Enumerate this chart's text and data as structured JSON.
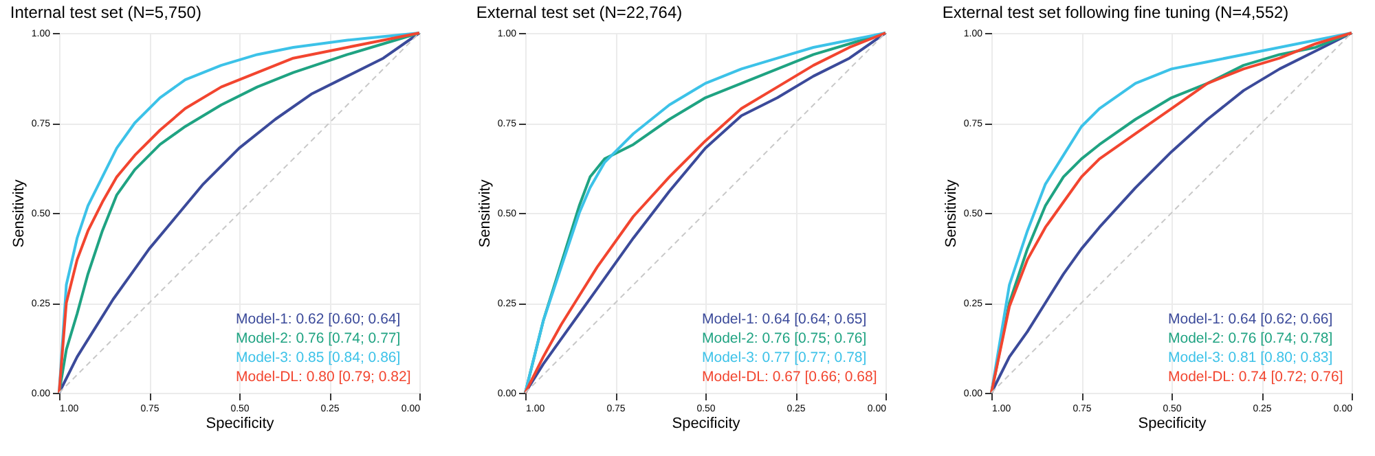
{
  "chart_data": [
    {
      "type": "line",
      "title": "Internal test set (N=5,750)",
      "xlabel": "Specificity",
      "ylabel": "Sensitivity",
      "xlim": [
        1,
        0
      ],
      "ylim": [
        0,
        1
      ],
      "xticks": [
        {
          "value": 1,
          "label": "1.00"
        },
        {
          "value": 0.75,
          "label": "0.75"
        },
        {
          "value": 0.5,
          "label": "0.50"
        },
        {
          "value": 0.25,
          "label": "0.25"
        },
        {
          "value": 0,
          "label": "0.00"
        }
      ],
      "yticks": [
        {
          "value": 0,
          "label": "0.00"
        },
        {
          "value": 0.25,
          "label": "0.25"
        },
        {
          "value": 0.5,
          "label": "0.50"
        },
        {
          "value": 0.75,
          "label": "0.75"
        },
        {
          "value": 1,
          "label": "1.00"
        }
      ],
      "grid": true,
      "legend": "bottom right",
      "series": [
        {
          "name": "Model-1: 0.62 [0.60; 0.64]",
          "color": "#3b4a9a",
          "x": [
            1,
            0.95,
            0.9,
            0.85,
            0.8,
            0.75,
            0.7,
            0.65,
            0.6,
            0.5,
            0.4,
            0.3,
            0.2,
            0.1,
            0
          ],
          "values": [
            0,
            0.1,
            0.18,
            0.26,
            0.33,
            0.4,
            0.46,
            0.52,
            0.58,
            0.68,
            0.76,
            0.83,
            0.88,
            0.93,
            1
          ]
        },
        {
          "name": "Model-2: 0.76 [0.74; 0.77]",
          "color": "#1fa382",
          "x": [
            1,
            0.98,
            0.95,
            0.92,
            0.88,
            0.84,
            0.79,
            0.72,
            0.65,
            0.55,
            0.45,
            0.35,
            0.2,
            0.1,
            0
          ],
          "values": [
            0,
            0.12,
            0.22,
            0.33,
            0.45,
            0.55,
            0.62,
            0.69,
            0.74,
            0.8,
            0.85,
            0.89,
            0.94,
            0.97,
            1
          ]
        },
        {
          "name": "Model-3: 0.85 [0.84; 0.86]",
          "color": "#3cc2e8",
          "x": [
            1,
            0.98,
            0.95,
            0.92,
            0.88,
            0.84,
            0.79,
            0.72,
            0.65,
            0.55,
            0.45,
            0.35,
            0.2,
            0.1,
            0
          ],
          "values": [
            0,
            0.3,
            0.43,
            0.52,
            0.6,
            0.68,
            0.75,
            0.82,
            0.87,
            0.91,
            0.94,
            0.96,
            0.98,
            0.99,
            1
          ]
        },
        {
          "name": "Model-DL: 0.80 [0.79; 0.82]",
          "color": "#f2452f",
          "x": [
            1,
            0.98,
            0.95,
            0.92,
            0.88,
            0.84,
            0.79,
            0.72,
            0.65,
            0.55,
            0.45,
            0.35,
            0.2,
            0.1,
            0
          ],
          "values": [
            0,
            0.25,
            0.37,
            0.45,
            0.53,
            0.6,
            0.66,
            0.73,
            0.79,
            0.85,
            0.89,
            0.93,
            0.96,
            0.98,
            1
          ]
        },
        {
          "color": "#c8c8c8",
          "line_style": "dashed",
          "x": [
            1,
            0
          ],
          "values": [
            0,
            1
          ]
        }
      ]
    },
    {
      "type": "line",
      "title": "External test set (N=22,764)",
      "xlabel": "Specificity",
      "ylabel": "Sensitivity",
      "xlim": [
        1,
        0
      ],
      "ylim": [
        0,
        1
      ],
      "xticks": [
        {
          "value": 1,
          "label": "1.00"
        },
        {
          "value": 0.75,
          "label": "0.75"
        },
        {
          "value": 0.5,
          "label": "0.50"
        },
        {
          "value": 0.25,
          "label": "0.25"
        },
        {
          "value": 0,
          "label": "0.00"
        }
      ],
      "yticks": [
        {
          "value": 0,
          "label": "0.00"
        },
        {
          "value": 0.25,
          "label": "0.25"
        },
        {
          "value": 0.5,
          "label": "0.50"
        },
        {
          "value": 0.75,
          "label": "0.75"
        },
        {
          "value": 1,
          "label": "1.00"
        }
      ],
      "grid": true,
      "legend": "bottom right",
      "series": [
        {
          "name": "Model-1: 0.64 [0.64; 0.65]",
          "color": "#3b4a9a",
          "x": [
            1,
            0.95,
            0.9,
            0.85,
            0.8,
            0.7,
            0.6,
            0.5,
            0.4,
            0.3,
            0.2,
            0.1,
            0
          ],
          "values": [
            0,
            0.08,
            0.15,
            0.22,
            0.29,
            0.43,
            0.56,
            0.68,
            0.77,
            0.82,
            0.88,
            0.93,
            1
          ]
        },
        {
          "name": "Model-2: 0.76 [0.75; 0.76]",
          "color": "#1fa382",
          "x": [
            1,
            0.95,
            0.9,
            0.85,
            0.82,
            0.78,
            0.7,
            0.6,
            0.5,
            0.4,
            0.3,
            0.2,
            0.1,
            0
          ],
          "values": [
            0,
            0.2,
            0.36,
            0.52,
            0.6,
            0.65,
            0.69,
            0.76,
            0.82,
            0.86,
            0.9,
            0.94,
            0.97,
            1
          ]
        },
        {
          "name": "Model-3: 0.77 [0.77; 0.78]",
          "color": "#3cc2e8",
          "x": [
            1,
            0.95,
            0.9,
            0.85,
            0.82,
            0.78,
            0.7,
            0.6,
            0.5,
            0.4,
            0.3,
            0.2,
            0.1,
            0
          ],
          "values": [
            0,
            0.2,
            0.35,
            0.5,
            0.57,
            0.64,
            0.72,
            0.8,
            0.86,
            0.9,
            0.93,
            0.96,
            0.98,
            1
          ]
        },
        {
          "name": "Model-DL: 0.67 [0.66; 0.68]",
          "color": "#f2452f",
          "x": [
            1,
            0.95,
            0.9,
            0.85,
            0.8,
            0.7,
            0.6,
            0.5,
            0.4,
            0.3,
            0.2,
            0.1,
            0
          ],
          "values": [
            0,
            0.1,
            0.19,
            0.27,
            0.35,
            0.49,
            0.6,
            0.7,
            0.79,
            0.85,
            0.91,
            0.96,
            1
          ]
        },
        {
          "color": "#c8c8c8",
          "line_style": "dashed",
          "x": [
            1,
            0
          ],
          "values": [
            0,
            1
          ]
        }
      ]
    },
    {
      "type": "line",
      "title": "External test set following fine tuning (N=4,552)",
      "xlabel": "Specificity",
      "ylabel": "Sensitivity",
      "xlim": [
        1,
        0
      ],
      "ylim": [
        0,
        1
      ],
      "xticks": [
        {
          "value": 1,
          "label": "1.00"
        },
        {
          "value": 0.75,
          "label": "0.75"
        },
        {
          "value": 0.5,
          "label": "0.50"
        },
        {
          "value": 0.25,
          "label": "0.25"
        },
        {
          "value": 0,
          "label": "0.00"
        }
      ],
      "yticks": [
        {
          "value": 0,
          "label": "0.00"
        },
        {
          "value": 0.25,
          "label": "0.25"
        },
        {
          "value": 0.5,
          "label": "0.50"
        },
        {
          "value": 0.75,
          "label": "0.75"
        },
        {
          "value": 1,
          "label": "1.00"
        }
      ],
      "grid": true,
      "legend": "bottom right",
      "series": [
        {
          "name": "Model-1: 0.64 [0.62; 0.66]",
          "color": "#3b4a9a",
          "x": [
            1,
            0.95,
            0.9,
            0.85,
            0.8,
            0.75,
            0.7,
            0.6,
            0.5,
            0.4,
            0.3,
            0.2,
            0.1,
            0
          ],
          "values": [
            0,
            0.1,
            0.17,
            0.25,
            0.33,
            0.4,
            0.46,
            0.57,
            0.67,
            0.76,
            0.84,
            0.9,
            0.95,
            1
          ]
        },
        {
          "name": "Model-2: 0.76 [0.74; 0.78]",
          "color": "#1fa382",
          "x": [
            1,
            0.95,
            0.9,
            0.85,
            0.8,
            0.75,
            0.7,
            0.6,
            0.5,
            0.4,
            0.3,
            0.2,
            0.1,
            0
          ],
          "values": [
            0,
            0.25,
            0.4,
            0.52,
            0.6,
            0.65,
            0.69,
            0.76,
            0.82,
            0.86,
            0.91,
            0.94,
            0.96,
            1
          ]
        },
        {
          "name": "Model-3: 0.81 [0.80; 0.83]",
          "color": "#3cc2e8",
          "x": [
            1,
            0.95,
            0.9,
            0.85,
            0.8,
            0.75,
            0.7,
            0.6,
            0.5,
            0.4,
            0.3,
            0.2,
            0.1,
            0
          ],
          "values": [
            0,
            0.3,
            0.45,
            0.58,
            0.66,
            0.74,
            0.79,
            0.86,
            0.9,
            0.92,
            0.94,
            0.96,
            0.98,
            1
          ]
        },
        {
          "name": "Model-DL: 0.74 [0.72; 0.76]",
          "color": "#f2452f",
          "x": [
            1,
            0.95,
            0.9,
            0.85,
            0.8,
            0.75,
            0.7,
            0.6,
            0.5,
            0.4,
            0.3,
            0.2,
            0.1,
            0
          ],
          "values": [
            0,
            0.24,
            0.37,
            0.46,
            0.53,
            0.6,
            0.65,
            0.72,
            0.79,
            0.86,
            0.9,
            0.93,
            0.97,
            1
          ]
        },
        {
          "color": "#c8c8c8",
          "line_style": "dashed",
          "x": [
            1,
            0
          ],
          "values": [
            0,
            1
          ]
        }
      ]
    }
  ]
}
